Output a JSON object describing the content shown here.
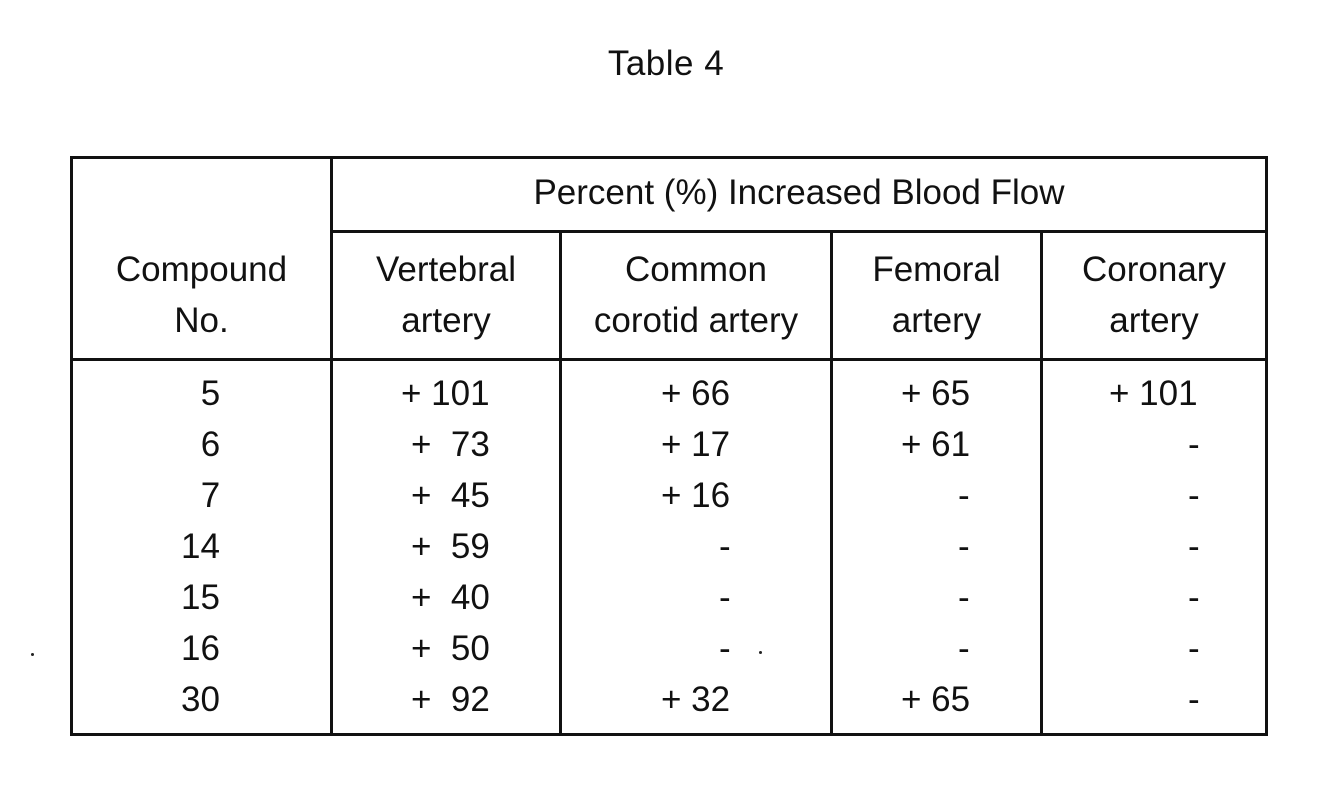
{
  "title": "Table 4",
  "table": {
    "group_header": "Percent (%) Increased Blood Flow",
    "columns": [
      {
        "line1": "Compound",
        "line2": "No."
      },
      {
        "line1": "Vertebral",
        "line2": "artery"
      },
      {
        "line1": "Common",
        "line2": "corotid artery"
      },
      {
        "line1": "Femoral",
        "line2": "artery"
      },
      {
        "line1": "Coronary",
        "line2": "artery"
      }
    ],
    "rows": [
      {
        "compound": "5",
        "vertebral": "+ 101",
        "common": "+ 66",
        "femoral": "+ 65",
        "coronary": "+ 101"
      },
      {
        "compound": "6",
        "vertebral": "+  73",
        "common": "+ 17",
        "femoral": "+ 61",
        "coronary": "-"
      },
      {
        "compound": "7",
        "vertebral": "+  45",
        "common": "+ 16",
        "femoral": "-",
        "coronary": "-"
      },
      {
        "compound": "14",
        "vertebral": "+  59",
        "common": "-",
        "femoral": "-",
        "coronary": "-"
      },
      {
        "compound": "15",
        "vertebral": "+  40",
        "common": "-",
        "femoral": "-",
        "coronary": "-"
      },
      {
        "compound": "16",
        "vertebral": "+  50",
        "common": "-",
        "femoral": "-",
        "coronary": "-"
      },
      {
        "compound": "30",
        "vertebral": "+  92",
        "common": "+ 32",
        "femoral": "+ 65",
        "coronary": "-"
      }
    ]
  }
}
